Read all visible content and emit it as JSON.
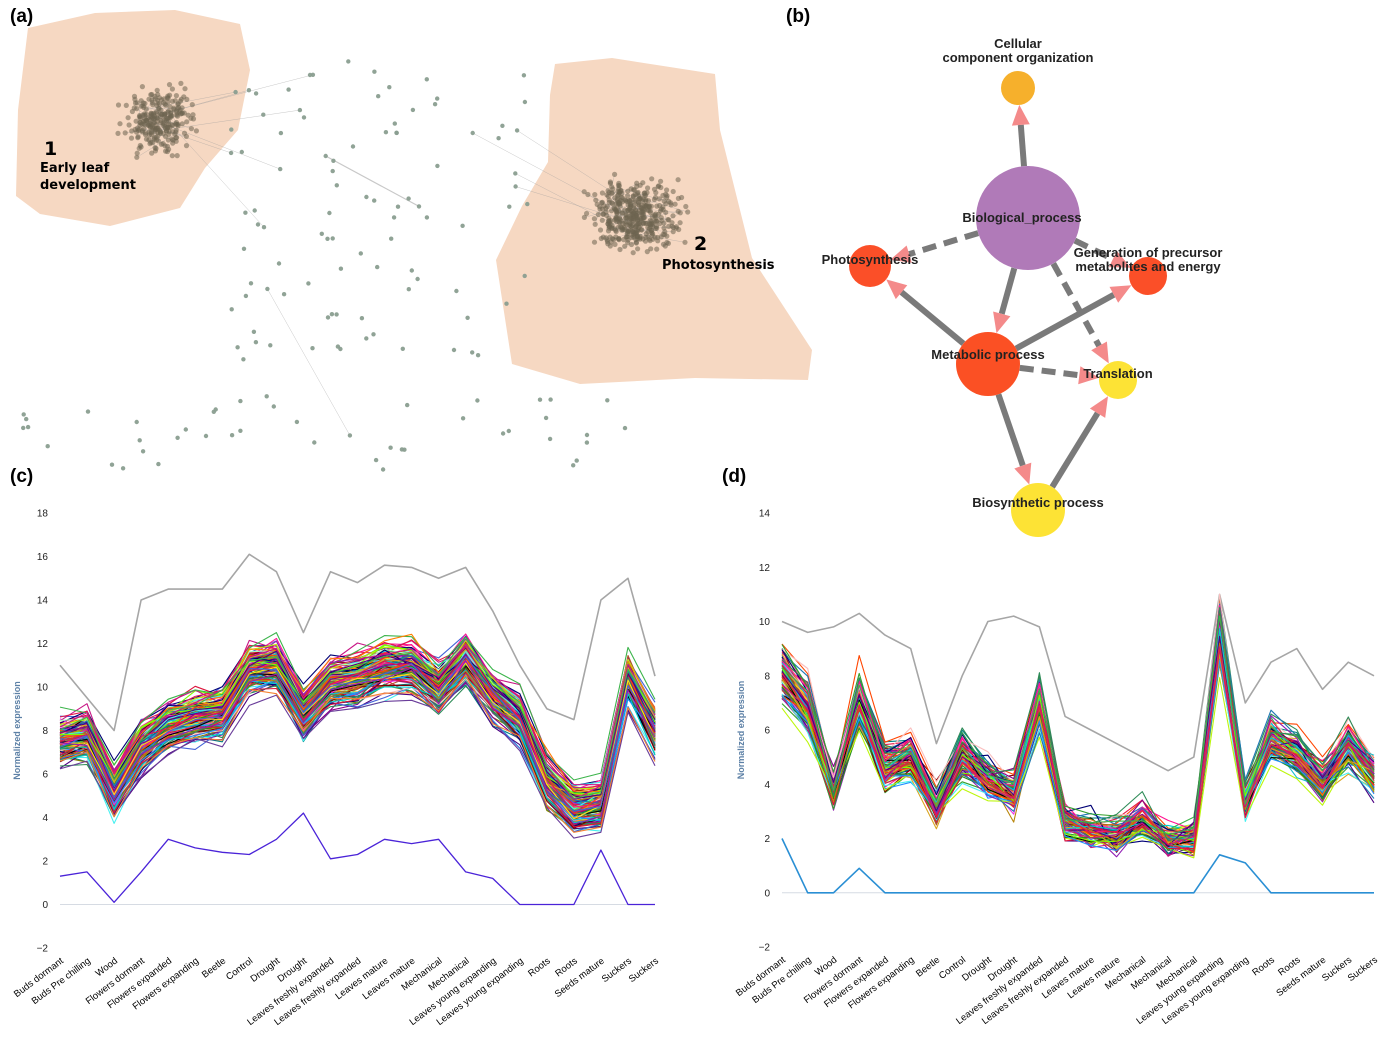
{
  "panels": {
    "a": {
      "label": "(a)"
    },
    "b": {
      "label": "(b)"
    },
    "c": {
      "label": "(c)"
    },
    "d": {
      "label": "(d)"
    }
  },
  "network": {
    "clusters": [
      {
        "number": "1",
        "label_line1": "Early leaf",
        "label_line2": "development"
      },
      {
        "number": "2",
        "label_line1": "Photosynthesis",
        "label_line2": ""
      }
    ],
    "cluster_fill": "#f6d8c2",
    "node_color": "#8a9e90"
  },
  "go_graph": {
    "nodes": [
      {
        "id": "cco",
        "label_line1": "Cellular",
        "label_line2": "component organization",
        "color": "#f6b02c"
      },
      {
        "id": "bp",
        "label_line1": "Biological_process",
        "label_line2": "",
        "color": "#b07ab8"
      },
      {
        "id": "ps",
        "label_line1": "Photosynthesis",
        "label_line2": "",
        "color": "#fb4f28"
      },
      {
        "id": "gen",
        "label_line1": "Generation of precursor",
        "label_line2": "metabolites and energy",
        "color": "#fb4f28"
      },
      {
        "id": "mp",
        "label_line1": "Metabolic process",
        "label_line2": "",
        "color": "#fb5024"
      },
      {
        "id": "tr",
        "label_line1": "Translation",
        "label_line2": "",
        "color": "#fde335"
      },
      {
        "id": "bsp",
        "label_line1": "Biosynthetic process",
        "label_line2": "",
        "color": "#fde335"
      }
    ],
    "edges": [
      {
        "from": "bp",
        "to": "cco",
        "style": "solid"
      },
      {
        "from": "bp",
        "to": "ps",
        "style": "dashed"
      },
      {
        "from": "bp",
        "to": "gen",
        "style": "dashed"
      },
      {
        "from": "bp",
        "to": "mp",
        "style": "solid"
      },
      {
        "from": "bp",
        "to": "tr",
        "style": "dashed"
      },
      {
        "from": "mp",
        "to": "ps",
        "style": "solid"
      },
      {
        "from": "mp",
        "to": "gen",
        "style": "solid"
      },
      {
        "from": "mp",
        "to": "tr",
        "style": "dashed"
      },
      {
        "from": "mp",
        "to": "bsp",
        "style": "solid"
      },
      {
        "from": "bsp",
        "to": "tr",
        "style": "solid"
      }
    ],
    "edge_color": "#7a7a7a",
    "arrow_color": "#f48a8a"
  },
  "chart_data": [
    {
      "panel": "c",
      "type": "line",
      "ylabel": "Normalized expression",
      "ylim": [
        -2,
        18
      ],
      "yticks": [
        -2,
        0,
        2,
        4,
        6,
        8,
        10,
        12,
        14,
        16,
        18
      ],
      "categories": [
        "Buds dormant",
        "Buds Pre chilling",
        "Wood",
        "Flowers dormant",
        "Flowers expanded",
        "Flowers expanding",
        "Beetle",
        "Control",
        "Drought",
        "Drought",
        "Leaves freshly expanded",
        "Leaves freshly expanded",
        "Leaves mature",
        "Leaves mature",
        "Mechanical",
        "Mechanical",
        "Leaves young expanding",
        "Leaves young expanding",
        "Roots",
        "Roots",
        "Seeds mature",
        "Suckers",
        "Suckers"
      ],
      "profile_mean": [
        7.5,
        7.8,
        5.2,
        7.2,
        8.2,
        8.6,
        8.8,
        10.8,
        11.0,
        8.8,
        10.2,
        10.4,
        10.9,
        11.0,
        10.0,
        11.3,
        9.6,
        8.6,
        5.6,
        4.4,
        4.6,
        10.4,
        8.0
      ],
      "gray_upper": [
        11.0,
        9.5,
        8.0,
        14.0,
        14.5,
        14.5,
        14.5,
        16.1,
        15.3,
        12.5,
        15.3,
        14.8,
        15.6,
        15.5,
        15.0,
        15.5,
        13.5,
        11.0,
        9.0,
        8.5,
        14.0,
        15.0,
        10.5
      ],
      "lowest": [
        1.3,
        1.5,
        0.1,
        1.5,
        3.0,
        2.6,
        2.4,
        2.3,
        3.0,
        4.2,
        2.1,
        2.3,
        3.0,
        2.8,
        3.0,
        1.5,
        1.2,
        0.0,
        0.0,
        0.0,
        2.5,
        0.0,
        0.0
      ]
    },
    {
      "panel": "d",
      "type": "line",
      "ylabel": "Normalized expression",
      "ylim": [
        -2,
        14
      ],
      "yticks": [
        -2,
        0,
        2,
        4,
        6,
        8,
        10,
        12,
        14
      ],
      "categories": [
        "Buds dormant",
        "Buds Pre chilling",
        "Wood",
        "Flowers dormant",
        "Flowers expanded",
        "Flowers expanding",
        "Beetle",
        "Control",
        "Drought",
        "Drought",
        "Leaves freshly expanded",
        "Leaves freshly expanded",
        "Leaves mature",
        "Leaves mature",
        "Mechanical",
        "Mechanical",
        "Mechanical",
        "Leaves young expanding",
        "Leaves young expanding",
        "Roots",
        "Roots",
        "Seeds mature",
        "Suckers",
        "Suckers"
      ],
      "profile_mean": [
        8.0,
        6.8,
        3.8,
        7.0,
        4.6,
        4.9,
        3.1,
        5.0,
        4.2,
        3.6,
        7.0,
        2.6,
        2.3,
        2.1,
        2.6,
        1.9,
        2.0,
        9.4,
        3.4,
        5.6,
        5.1,
        4.0,
        5.4,
        4.3
      ],
      "gray_upper": [
        10.0,
        9.6,
        9.8,
        10.3,
        9.5,
        9.0,
        5.5,
        8.0,
        10.0,
        10.2,
        9.8,
        6.5,
        6.0,
        5.5,
        5.0,
        4.5,
        5.0,
        11.0,
        7.0,
        8.5,
        9.0,
        7.5,
        8.5,
        8.0
      ],
      "flat_series": [
        2.0,
        0.0,
        0.0,
        0.9,
        0.0,
        0.0,
        0.0,
        0.0,
        0.0,
        0.0,
        0.0,
        0.0,
        0.0,
        0.0,
        0.0,
        0.0,
        0.0,
        1.4,
        1.1,
        0.0,
        0.0,
        0.0,
        0.0,
        0.0
      ]
    }
  ]
}
